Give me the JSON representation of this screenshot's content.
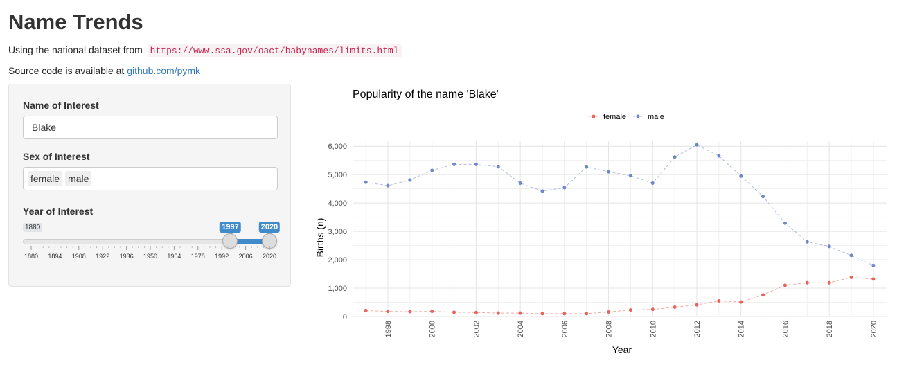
{
  "page": {
    "title": "Name Trends",
    "intro_text": "Using the national dataset from",
    "dataset_url": "https://www.ssa.gov/oact/babynames/limits.html",
    "source_text": "Source code is available at",
    "source_link": "github.com/pymk"
  },
  "sidebar": {
    "name_label": "Name of Interest",
    "name_value": "Blake",
    "sex_label": "Sex of Interest",
    "sex_selected": [
      "female",
      "male"
    ],
    "year_label": "Year of Interest",
    "year_slider": {
      "min": 1880,
      "max": 2020,
      "from": 1997,
      "to": 2020,
      "min_label": "1880",
      "from_label": "1997",
      "to_label": "2020",
      "grid_labels": [
        "1880",
        "1894",
        "1908",
        "1922",
        "1936",
        "1950",
        "1964",
        "1978",
        "1992",
        "2006",
        "2020"
      ],
      "accent_color": "#428bca"
    }
  },
  "chart_data": {
    "type": "line",
    "title": "Popularity of the name 'Blake'",
    "xlabel": "Year",
    "ylabel": "Births (n)",
    "xlim": [
      1996.4,
      2020.6
    ],
    "ylim": [
      0,
      6200
    ],
    "x_ticks": [
      "1998",
      "2000",
      "2002",
      "2004",
      "2006",
      "2008",
      "2010",
      "2012",
      "2014",
      "2016",
      "2018",
      "2020"
    ],
    "y_ticks": [
      "0",
      "1,000",
      "2,000",
      "3,000",
      "4,000",
      "5,000",
      "6,000"
    ],
    "grid": true,
    "legend_position": "top",
    "line_style": "dashed",
    "x": [
      1997,
      1998,
      1999,
      2000,
      2001,
      2002,
      2003,
      2004,
      2005,
      2006,
      2007,
      2008,
      2009,
      2010,
      2011,
      2012,
      2013,
      2014,
      2015,
      2016,
      2017,
      2018,
      2019,
      2020
    ],
    "series": [
      {
        "name": "female",
        "color": "#e8645a",
        "values": [
          210,
          180,
          170,
          180,
          150,
          140,
          120,
          120,
          100,
          100,
          100,
          160,
          230,
          250,
          330,
          410,
          550,
          510,
          760,
          1100,
          1190,
          1190,
          1380,
          1320
        ]
      },
      {
        "name": "male",
        "color": "#6e87c9",
        "values": [
          4730,
          4610,
          4810,
          5150,
          5360,
          5360,
          5280,
          4700,
          4420,
          4540,
          5270,
          5100,
          4960,
          4700,
          5620,
          6050,
          5660,
          4950,
          4230,
          3290,
          2630,
          2470,
          2150,
          1800
        ]
      }
    ]
  }
}
